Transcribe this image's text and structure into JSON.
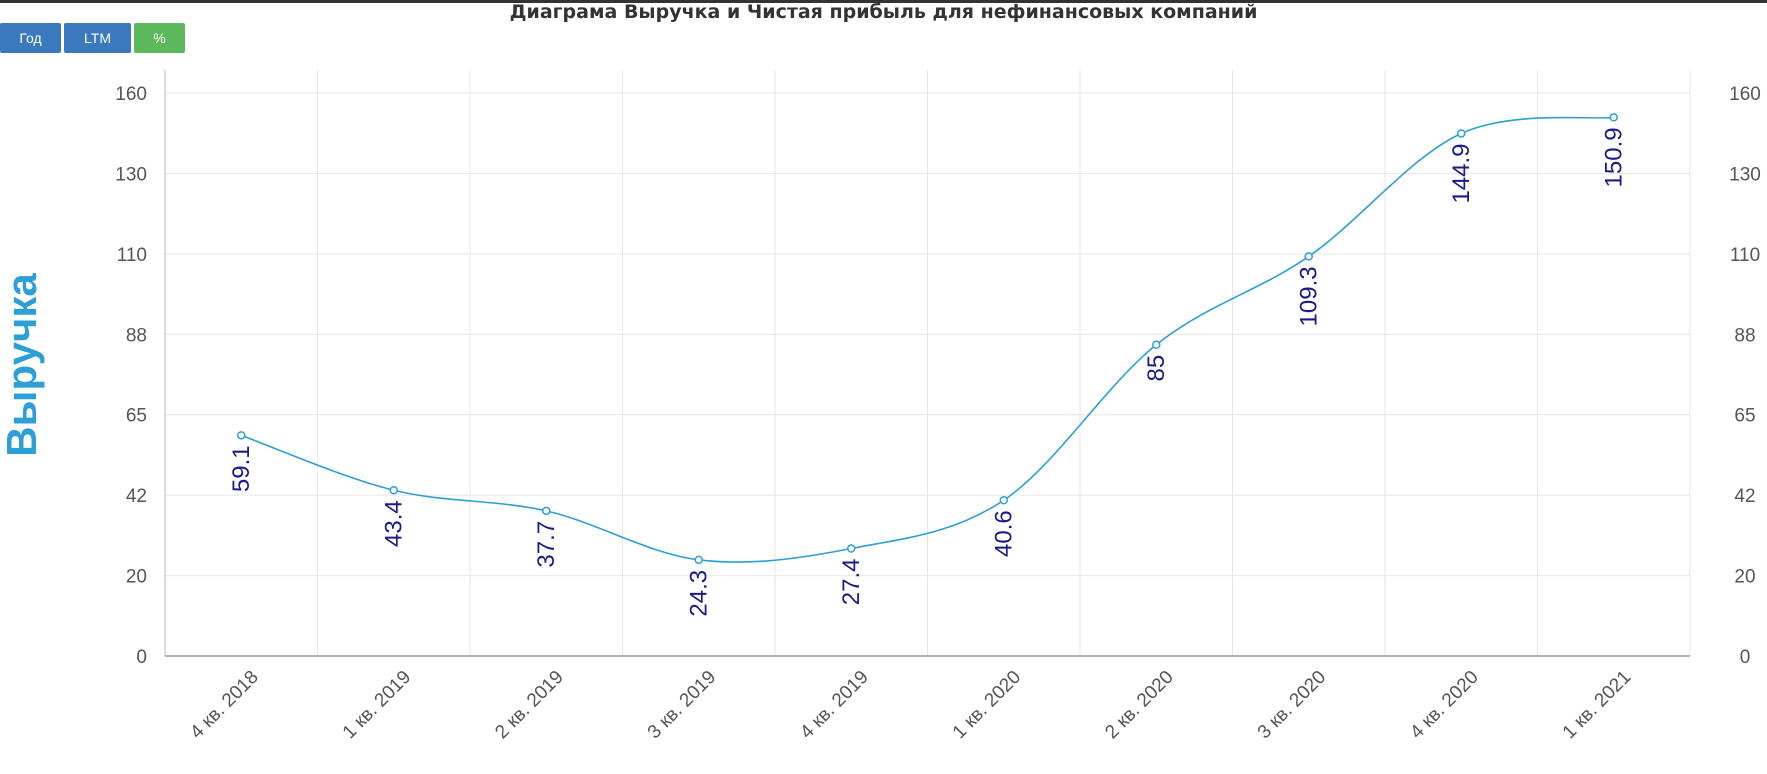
{
  "toolbar": {
    "year_label": "Год",
    "ltm_label": "LTM",
    "percent_label": "%"
  },
  "colors": {
    "line": "#2b9fd6",
    "data_label": "#1a1a8c",
    "button_primary": "#3a79bd",
    "button_active": "#5cb85c",
    "ylabel": "#2b9fd6"
  },
  "chart_data": {
    "type": "line",
    "title": "Диаграма Выручка и Чистая прибыль для нефинансовых компаний",
    "ylabel": "Выручка",
    "xlabel": "",
    "categories": [
      "4 кв. 2018",
      "1 кв. 2019",
      "2 кв. 2019",
      "3 кв. 2019",
      "4 кв. 2019",
      "1 кв. 2020",
      "2 кв. 2020",
      "3 кв. 2020",
      "4 кв. 2020",
      "1 кв. 2021"
    ],
    "series": [
      {
        "values": [
          59.1,
          43.4,
          37.7,
          24.3,
          27.4,
          40.6,
          85,
          109.3,
          144.9,
          150.9
        ]
      }
    ],
    "yticks": [
      0,
      20,
      42,
      65,
      88,
      110,
      130,
      160
    ],
    "ylim": [
      0,
      160
    ],
    "grid": true,
    "smooth": true
  }
}
